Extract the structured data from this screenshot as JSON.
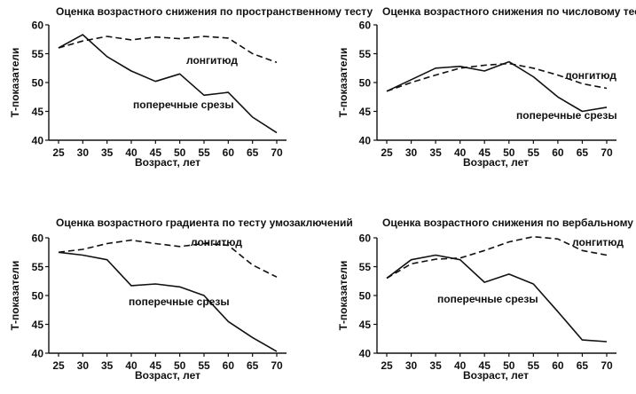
{
  "chart_data": [
    {
      "type": "line",
      "title": "Оценка возрастного снижения по пространственному тесту",
      "xlabel": "Возраст, лет",
      "ylabel": "Т-показатели",
      "x": [
        25,
        30,
        35,
        40,
        45,
        50,
        55,
        60,
        65,
        70
      ],
      "xlim": [
        25,
        70
      ],
      "ylim": [
        40,
        60
      ],
      "yticks": [
        40,
        45,
        50,
        55,
        60
      ],
      "grid": false,
      "series": [
        {
          "name": "лонгитюд",
          "style": "dashed",
          "values": [
            56,
            57.2,
            58,
            57.4,
            57.9,
            57.6,
            58,
            57.7,
            55,
            53.5
          ]
        },
        {
          "name": "поперечные срезы",
          "style": "solid",
          "values": [
            56,
            58.3,
            54.5,
            52,
            50.2,
            51.5,
            47.8,
            48.3,
            44,
            41.3
          ]
        }
      ]
    },
    {
      "type": "line",
      "title": "Оценка возрастного снижения по числовому тесту",
      "xlabel": "Возраст, лет",
      "ylabel": "Т-показатели",
      "x": [
        25,
        30,
        35,
        40,
        45,
        50,
        55,
        60,
        65,
        70
      ],
      "xlim": [
        25,
        70
      ],
      "ylim": [
        40,
        60
      ],
      "yticks": [
        40,
        45,
        50,
        55,
        60
      ],
      "grid": false,
      "series": [
        {
          "name": "лонгитюд",
          "style": "dashed",
          "values": [
            48.5,
            50,
            51.3,
            52.5,
            53,
            53.3,
            52.5,
            51.3,
            49.8,
            49
          ]
        },
        {
          "name": "поперечные срезы",
          "style": "solid",
          "values": [
            48.5,
            50.5,
            52.5,
            52.8,
            52,
            53.6,
            51,
            47.5,
            45,
            45.7
          ]
        }
      ]
    },
    {
      "type": "line",
      "title": "Оценка возрастного градиента по тесту умозаключений",
      "xlabel": "Возраст, лет",
      "ylabel": "Т-показатели",
      "x": [
        25,
        30,
        35,
        40,
        45,
        50,
        55,
        60,
        65,
        70
      ],
      "xlim": [
        25,
        70
      ],
      "ylim": [
        40,
        60
      ],
      "yticks": [
        40,
        45,
        50,
        55,
        60
      ],
      "grid": false,
      "series": [
        {
          "name": "лонгитюд",
          "style": "dashed",
          "values": [
            57.5,
            58,
            59,
            59.6,
            59,
            58.5,
            59,
            58.7,
            55.3,
            53.2
          ]
        },
        {
          "name": "поперечные срезы",
          "style": "solid",
          "values": [
            57.5,
            57,
            56.2,
            51.7,
            52,
            51.5,
            50,
            45.5,
            42.7,
            40.3
          ]
        }
      ]
    },
    {
      "type": "line",
      "title": "Оценка возрастного снижения по вербальному тесту",
      "xlabel": "Возраст, лет",
      "ylabel": "Т-показатели",
      "x": [
        25,
        30,
        35,
        40,
        45,
        50,
        55,
        60,
        65,
        70
      ],
      "xlim": [
        25,
        70
      ],
      "ylim": [
        40,
        60
      ],
      "yticks": [
        40,
        45,
        50,
        55,
        60
      ],
      "grid": false,
      "series": [
        {
          "name": "лонгитюд",
          "style": "dashed",
          "values": [
            53,
            55.5,
            56.3,
            56.5,
            57.8,
            59.3,
            60.2,
            59.8,
            57.8,
            57
          ]
        },
        {
          "name": "поперечные срезы",
          "style": "solid",
          "values": [
            53,
            56.2,
            57,
            56.2,
            52.3,
            53.7,
            52,
            47.2,
            42.3,
            42
          ]
        }
      ]
    }
  ]
}
